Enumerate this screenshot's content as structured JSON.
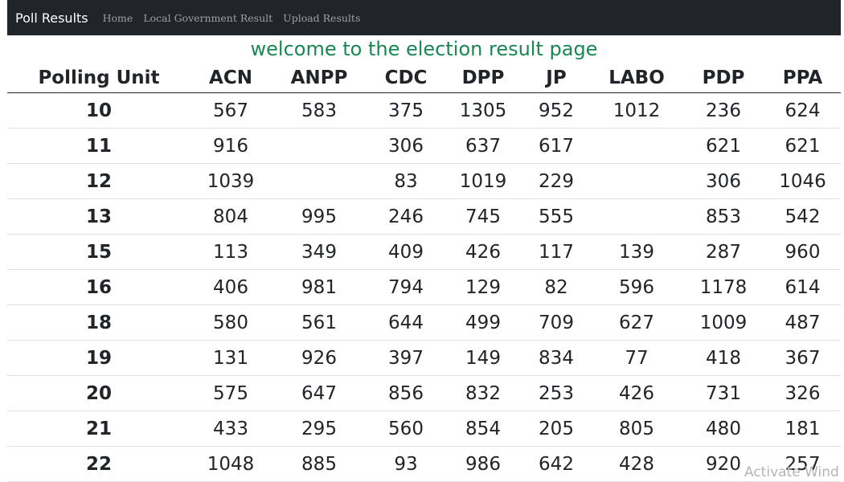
{
  "navbar": {
    "brand": "Poll Results",
    "links": [
      "Home",
      "Local Government Result",
      "Upload Results"
    ]
  },
  "heading": "welcome to the election result page",
  "table": {
    "columns": [
      "Polling Unit",
      "ACN",
      "ANPP",
      "CDC",
      "DPP",
      "JP",
      "LABO",
      "PDP",
      "PPA"
    ],
    "rows": [
      [
        "10",
        "567",
        "583",
        "375",
        "1305",
        "952",
        "1012",
        "236",
        "624"
      ],
      [
        "11",
        "916",
        "",
        "306",
        "637",
        "617",
        "",
        "621",
        "621"
      ],
      [
        "12",
        "1039",
        "",
        "83",
        "1019",
        "229",
        "",
        "306",
        "1046"
      ],
      [
        "13",
        "804",
        "995",
        "246",
        "745",
        "555",
        "",
        "853",
        "542"
      ],
      [
        "15",
        "113",
        "349",
        "409",
        "426",
        "117",
        "139",
        "287",
        "960"
      ],
      [
        "16",
        "406",
        "981",
        "794",
        "129",
        "82",
        "596",
        "1178",
        "614"
      ],
      [
        "18",
        "580",
        "561",
        "644",
        "499",
        "709",
        "627",
        "1009",
        "487"
      ],
      [
        "19",
        "131",
        "926",
        "397",
        "149",
        "834",
        "77",
        "418",
        "367"
      ],
      [
        "20",
        "575",
        "647",
        "856",
        "832",
        "253",
        "426",
        "731",
        "326"
      ],
      [
        "21",
        "433",
        "295",
        "560",
        "854",
        "205",
        "805",
        "480",
        "181"
      ],
      [
        "22",
        "1048",
        "885",
        "93",
        "986",
        "642",
        "428",
        "920",
        "257"
      ]
    ]
  },
  "watermark": "Activate Wind",
  "colors": {
    "navbar_bg": "#212529",
    "heading": "#198754",
    "nav_link": "#9aa0a6"
  }
}
